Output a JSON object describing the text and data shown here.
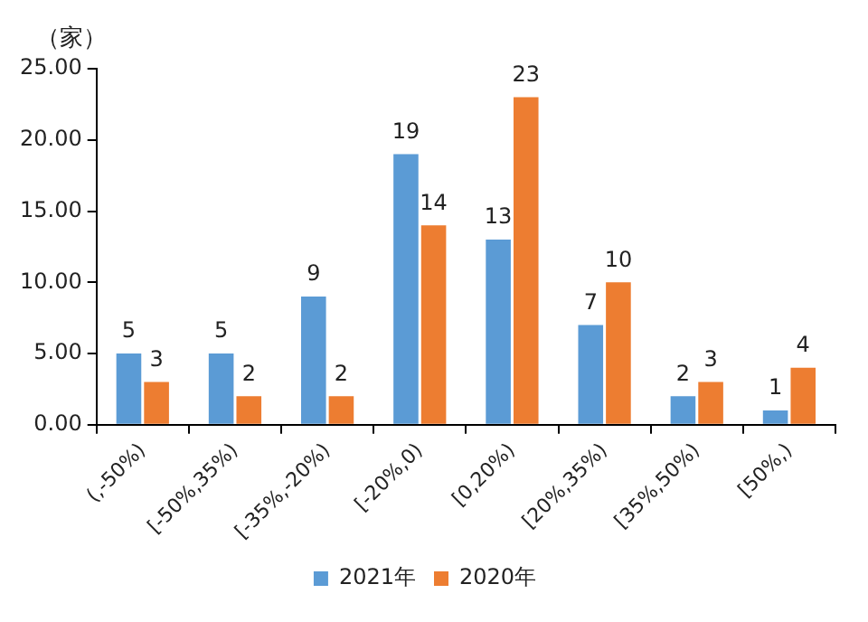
{
  "chart_data": {
    "type": "bar",
    "ylabel": "（家）",
    "categories": [
      "(,-50%)",
      "[-50%,35%)",
      "[-35%,-20%)",
      "[-20%,0)",
      "[0,20%)",
      "[20%,35%)",
      "[35%,50%)",
      "[50%,)"
    ],
    "series": [
      {
        "name": "2021年",
        "color": "#5b9bd5",
        "values": [
          5,
          5,
          9,
          19,
          13,
          7,
          2,
          1
        ]
      },
      {
        "name": "2020年",
        "color": "#ed7d31",
        "values": [
          3,
          2,
          2,
          14,
          23,
          10,
          3,
          4
        ]
      }
    ],
    "ylim": [
      0,
      25
    ],
    "yticks": [
      {
        "value": 0,
        "label": "0.00"
      },
      {
        "value": 5,
        "label": "5.00"
      },
      {
        "value": 10,
        "label": "10.00"
      },
      {
        "value": 15,
        "label": "15.00"
      },
      {
        "value": 20,
        "label": "20.00"
      },
      {
        "value": 25,
        "label": "25.00"
      }
    ],
    "grid": false,
    "legend": "bottom",
    "data_labels": true
  }
}
